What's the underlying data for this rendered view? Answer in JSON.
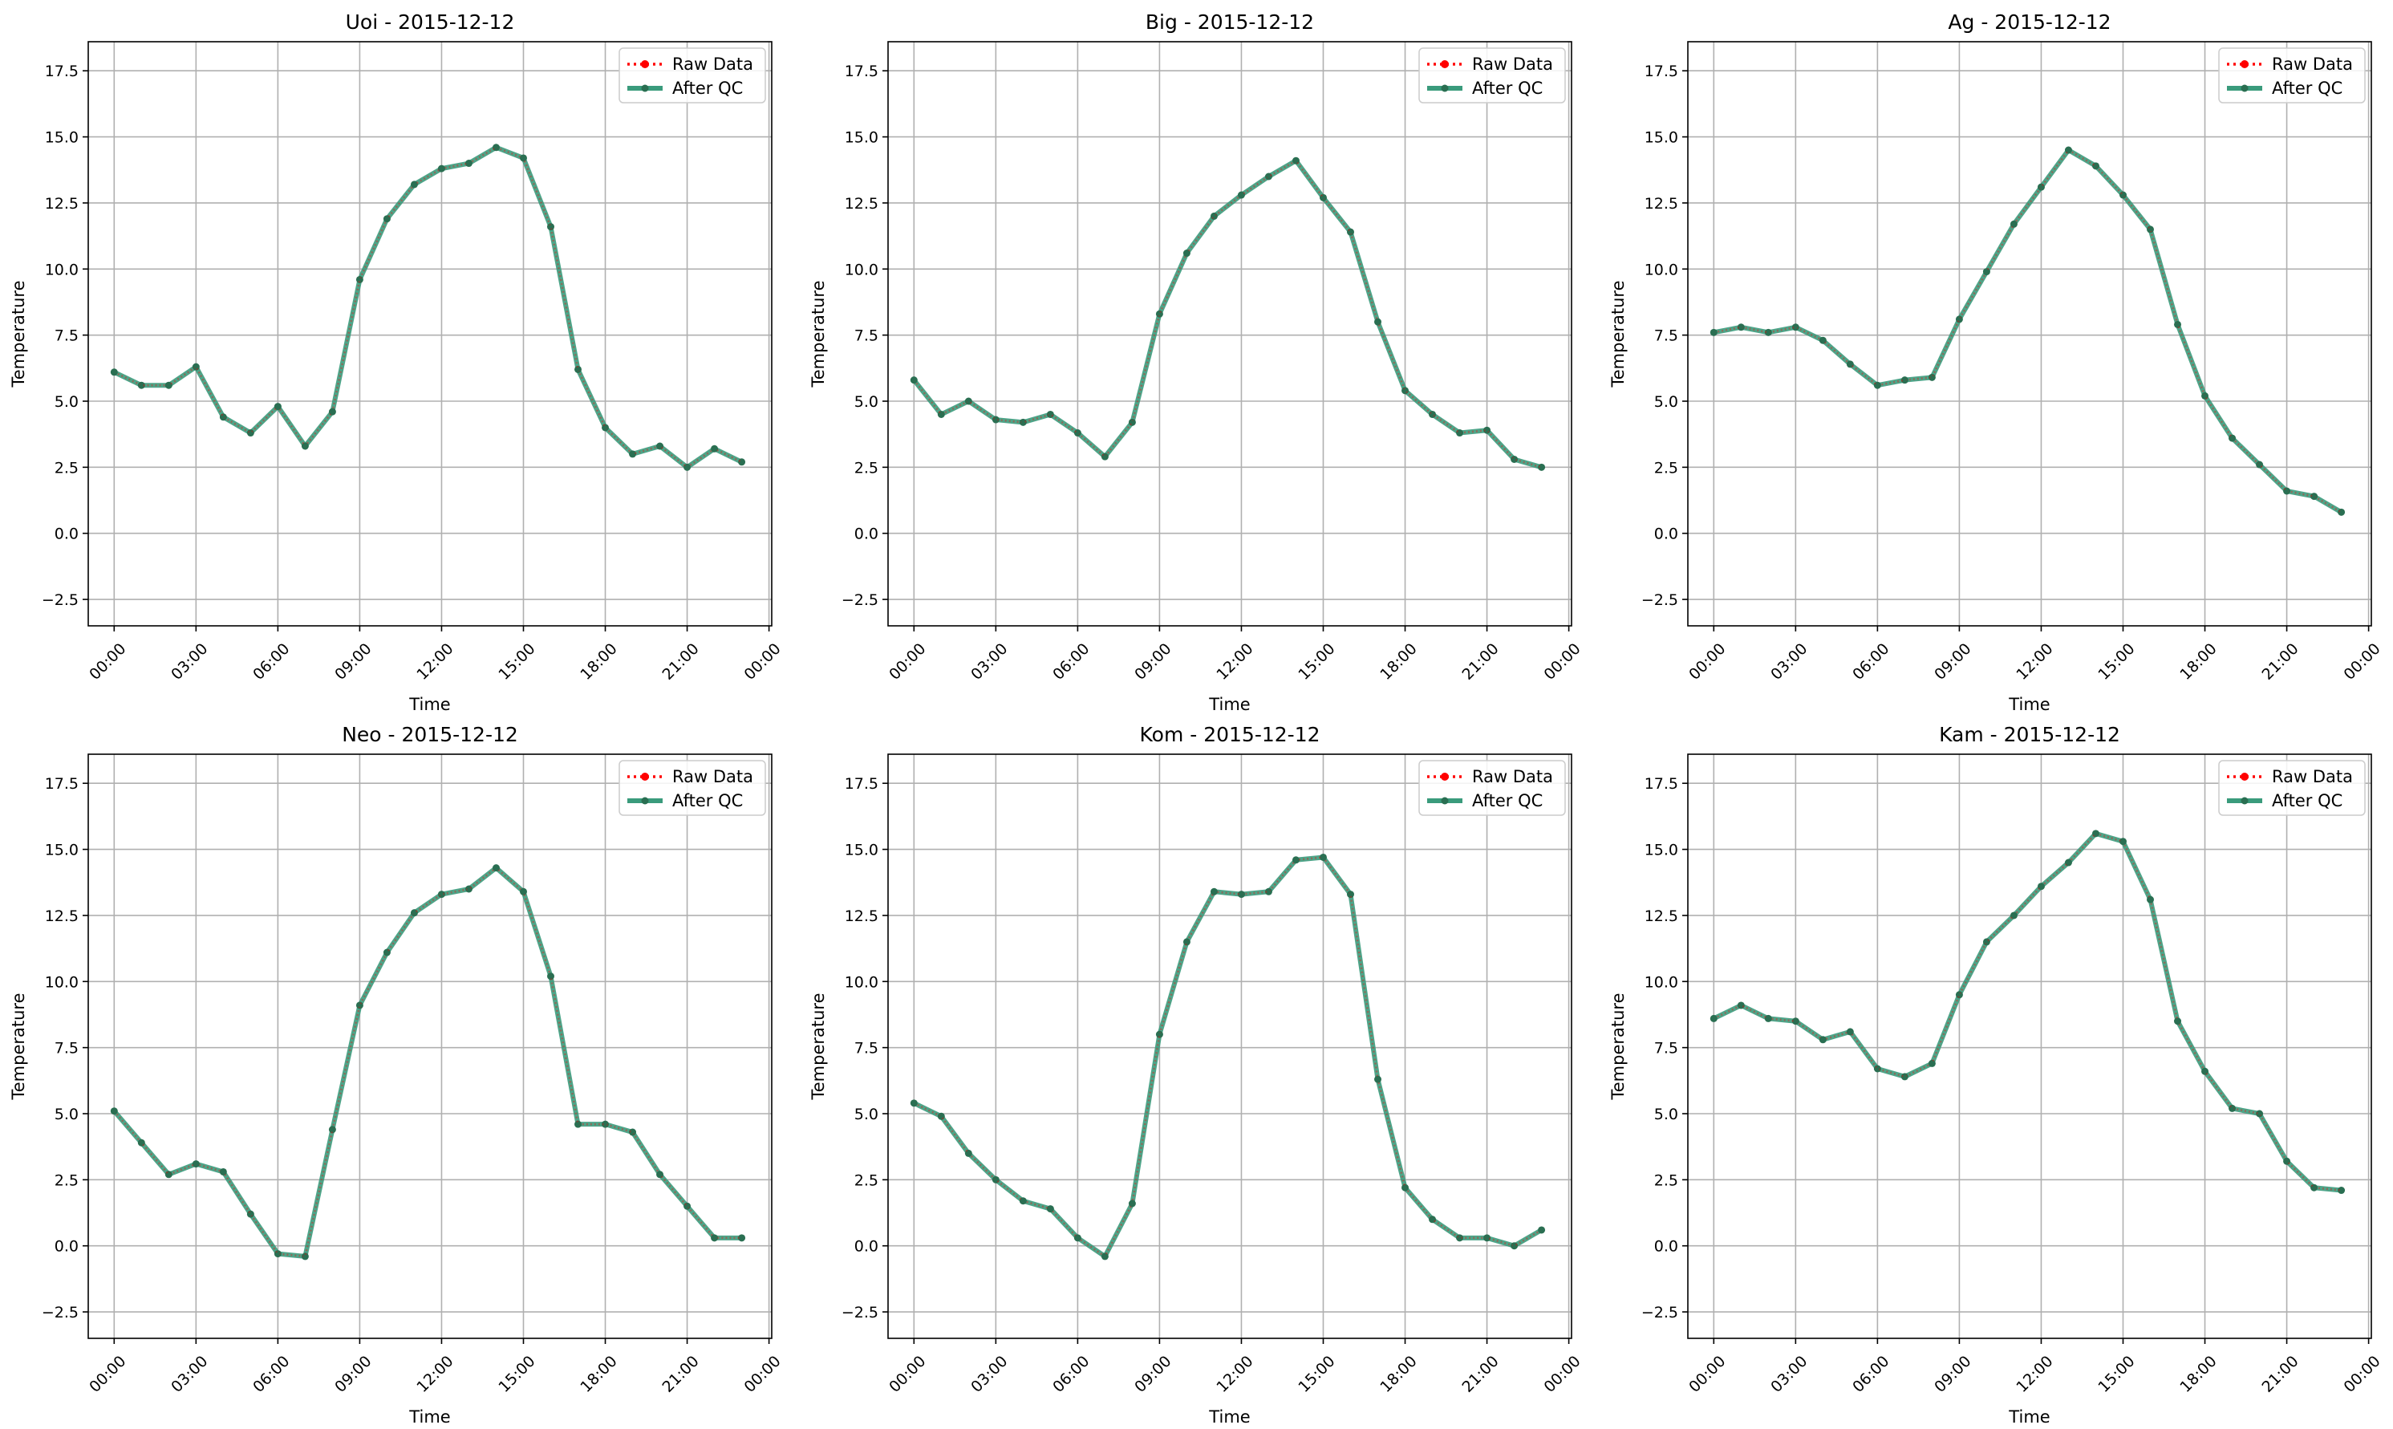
{
  "colors": {
    "raw": "#ff0000",
    "qc": "#2e8b6e",
    "qc_line": "#3a9b7c",
    "marker": "#2a6f52",
    "grid": "#b0b0b0",
    "axis": "#000000"
  },
  "chart_data": [
    {
      "type": "line",
      "title": "Uoi - 2015-12-12",
      "xlabel": "Time",
      "ylabel": "Temperature",
      "ylim": [
        -3.5,
        18.6
      ],
      "yticks": [
        -2.5,
        0.0,
        2.5,
        5.0,
        7.5,
        10.0,
        12.5,
        15.0,
        17.5
      ],
      "ytick_labels": [
        "−2.5",
        "0.0",
        "2.5",
        "5.0",
        "7.5",
        "10.0",
        "12.5",
        "15.0",
        "17.5"
      ],
      "xlim": [
        -0.95,
        24.1
      ],
      "xticks": [
        0,
        3,
        6,
        9,
        12,
        15,
        18,
        21,
        24
      ],
      "xtick_labels": [
        "00:00",
        "03:00",
        "06:00",
        "09:00",
        "12:00",
        "15:00",
        "18:00",
        "21:00",
        "00:00"
      ],
      "grid": true,
      "legend": "upper right",
      "x": [
        0,
        1,
        2,
        3,
        4,
        5,
        6,
        7,
        8,
        9,
        10,
        11,
        12,
        13,
        14,
        15,
        16,
        17,
        18,
        19,
        20,
        21,
        22,
        23
      ],
      "series": [
        {
          "name": "Raw Data",
          "style": "dotted",
          "values": [
            6.1,
            5.6,
            5.6,
            6.3,
            4.4,
            3.8,
            4.8,
            3.3,
            4.6,
            9.6,
            11.9,
            13.2,
            13.8,
            14.0,
            14.6,
            14.2,
            11.6,
            6.2,
            4.0,
            3.0,
            3.3,
            2.5,
            3.2,
            2.7
          ]
        },
        {
          "name": "After QC",
          "style": "solid",
          "values": [
            6.1,
            5.6,
            5.6,
            6.3,
            4.4,
            3.8,
            4.8,
            3.3,
            4.6,
            9.6,
            11.9,
            13.2,
            13.8,
            14.0,
            14.6,
            14.2,
            11.6,
            6.2,
            4.0,
            3.0,
            3.3,
            2.5,
            3.2,
            2.7
          ]
        }
      ]
    },
    {
      "type": "line",
      "title": "Big - 2015-12-12",
      "xlabel": "Time",
      "ylabel": "Temperature",
      "ylim": [
        -3.5,
        18.6
      ],
      "yticks": [
        -2.5,
        0.0,
        2.5,
        5.0,
        7.5,
        10.0,
        12.5,
        15.0,
        17.5
      ],
      "ytick_labels": [
        "−2.5",
        "0.0",
        "2.5",
        "5.0",
        "7.5",
        "10.0",
        "12.5",
        "15.0",
        "17.5"
      ],
      "xlim": [
        -0.95,
        24.1
      ],
      "xticks": [
        0,
        3,
        6,
        9,
        12,
        15,
        18,
        21,
        24
      ],
      "xtick_labels": [
        "00:00",
        "03:00",
        "06:00",
        "09:00",
        "12:00",
        "15:00",
        "18:00",
        "21:00",
        "00:00"
      ],
      "grid": true,
      "legend": "upper right",
      "x": [
        0,
        1,
        2,
        3,
        4,
        5,
        6,
        7,
        8,
        9,
        10,
        11,
        12,
        13,
        14,
        15,
        16,
        17,
        18,
        19,
        20,
        21,
        22,
        23
      ],
      "series": [
        {
          "name": "Raw Data",
          "style": "dotted",
          "values": [
            5.8,
            4.5,
            5.0,
            4.3,
            4.2,
            4.5,
            3.8,
            2.9,
            4.2,
            8.3,
            10.6,
            12.0,
            12.8,
            13.5,
            14.1,
            12.7,
            11.4,
            8.0,
            5.4,
            4.5,
            3.8,
            3.9,
            2.8,
            2.5
          ]
        },
        {
          "name": "After QC",
          "style": "solid",
          "values": [
            5.8,
            4.5,
            5.0,
            4.3,
            4.2,
            4.5,
            3.8,
            2.9,
            4.2,
            8.3,
            10.6,
            12.0,
            12.8,
            13.5,
            14.1,
            12.7,
            11.4,
            8.0,
            5.4,
            4.5,
            3.8,
            3.9,
            2.8,
            2.5
          ]
        }
      ]
    },
    {
      "type": "line",
      "title": "Ag - 2015-12-12",
      "xlabel": "Time",
      "ylabel": "Temperature",
      "ylim": [
        -3.5,
        18.6
      ],
      "yticks": [
        -2.5,
        0.0,
        2.5,
        5.0,
        7.5,
        10.0,
        12.5,
        15.0,
        17.5
      ],
      "ytick_labels": [
        "−2.5",
        "0.0",
        "2.5",
        "5.0",
        "7.5",
        "10.0",
        "12.5",
        "15.0",
        "17.5"
      ],
      "xlim": [
        -0.95,
        24.1
      ],
      "xticks": [
        0,
        3,
        6,
        9,
        12,
        15,
        18,
        21,
        24
      ],
      "xtick_labels": [
        "00:00",
        "03:00",
        "06:00",
        "09:00",
        "12:00",
        "15:00",
        "18:00",
        "21:00",
        "00:00"
      ],
      "grid": true,
      "legend": "upper right",
      "x": [
        0,
        1,
        2,
        3,
        4,
        5,
        6,
        7,
        8,
        9,
        10,
        11,
        12,
        13,
        14,
        15,
        16,
        17,
        18,
        19,
        20,
        21,
        22,
        23
      ],
      "series": [
        {
          "name": "Raw Data",
          "style": "dotted",
          "values": [
            7.6,
            7.8,
            7.6,
            7.8,
            7.3,
            6.4,
            5.6,
            5.8,
            5.9,
            8.1,
            9.9,
            11.7,
            13.1,
            14.5,
            13.9,
            12.8,
            11.5,
            7.9,
            5.2,
            3.6,
            2.6,
            1.6,
            1.4,
            0.8
          ]
        },
        {
          "name": "After QC",
          "style": "solid",
          "values": [
            7.6,
            7.8,
            7.6,
            7.8,
            7.3,
            6.4,
            5.6,
            5.8,
            5.9,
            8.1,
            9.9,
            11.7,
            13.1,
            14.5,
            13.9,
            12.8,
            11.5,
            7.9,
            5.2,
            3.6,
            2.6,
            1.6,
            1.4,
            0.8
          ]
        }
      ]
    },
    {
      "type": "line",
      "title": "Neo - 2015-12-12",
      "xlabel": "Time",
      "ylabel": "Temperature",
      "ylim": [
        -3.5,
        18.6
      ],
      "yticks": [
        -2.5,
        0.0,
        2.5,
        5.0,
        7.5,
        10.0,
        12.5,
        15.0,
        17.5
      ],
      "ytick_labels": [
        "−2.5",
        "0.0",
        "2.5",
        "5.0",
        "7.5",
        "10.0",
        "12.5",
        "15.0",
        "17.5"
      ],
      "xlim": [
        -0.95,
        24.1
      ],
      "xticks": [
        0,
        3,
        6,
        9,
        12,
        15,
        18,
        21,
        24
      ],
      "xtick_labels": [
        "00:00",
        "03:00",
        "06:00",
        "09:00",
        "12:00",
        "15:00",
        "18:00",
        "21:00",
        "00:00"
      ],
      "grid": true,
      "legend": "upper right",
      "x": [
        0,
        1,
        2,
        3,
        4,
        5,
        6,
        7,
        8,
        9,
        10,
        11,
        12,
        13,
        14,
        15,
        16,
        17,
        18,
        19,
        20,
        21,
        22,
        23
      ],
      "series": [
        {
          "name": "Raw Data",
          "style": "dotted",
          "values": [
            5.1,
            3.9,
            2.7,
            3.1,
            2.8,
            1.2,
            -0.3,
            -0.4,
            4.4,
            9.1,
            11.1,
            12.6,
            13.3,
            13.5,
            14.3,
            13.4,
            10.2,
            4.6,
            4.6,
            4.3,
            2.7,
            1.5,
            0.3,
            0.3
          ]
        },
        {
          "name": "After QC",
          "style": "solid",
          "values": [
            5.1,
            3.9,
            2.7,
            3.1,
            2.8,
            1.2,
            -0.3,
            -0.4,
            4.4,
            9.1,
            11.1,
            12.6,
            13.3,
            13.5,
            14.3,
            13.4,
            10.2,
            4.6,
            4.6,
            4.3,
            2.7,
            1.5,
            0.3,
            0.3
          ]
        }
      ]
    },
    {
      "type": "line",
      "title": "Kom - 2015-12-12",
      "xlabel": "Time",
      "ylabel": "Temperature",
      "ylim": [
        -3.5,
        18.6
      ],
      "yticks": [
        -2.5,
        0.0,
        2.5,
        5.0,
        7.5,
        10.0,
        12.5,
        15.0,
        17.5
      ],
      "ytick_labels": [
        "−2.5",
        "0.0",
        "2.5",
        "5.0",
        "7.5",
        "10.0",
        "12.5",
        "15.0",
        "17.5"
      ],
      "xlim": [
        -0.95,
        24.1
      ],
      "xticks": [
        0,
        3,
        6,
        9,
        12,
        15,
        18,
        21,
        24
      ],
      "xtick_labels": [
        "00:00",
        "03:00",
        "06:00",
        "09:00",
        "12:00",
        "15:00",
        "18:00",
        "21:00",
        "00:00"
      ],
      "grid": true,
      "legend": "upper right",
      "x": [
        0,
        1,
        2,
        3,
        4,
        5,
        6,
        7,
        8,
        9,
        10,
        11,
        12,
        13,
        14,
        15,
        16,
        17,
        18,
        19,
        20,
        21,
        22,
        23
      ],
      "series": [
        {
          "name": "Raw Data",
          "style": "dotted",
          "values": [
            5.4,
            4.9,
            3.5,
            2.5,
            1.7,
            1.4,
            0.3,
            -0.4,
            1.6,
            8.0,
            11.5,
            13.4,
            13.3,
            13.4,
            14.6,
            14.7,
            13.3,
            6.3,
            2.2,
            1.0,
            0.3,
            0.3,
            0.0,
            0.6
          ]
        },
        {
          "name": "After QC",
          "style": "solid",
          "values": [
            5.4,
            4.9,
            3.5,
            2.5,
            1.7,
            1.4,
            0.3,
            -0.4,
            1.6,
            8.0,
            11.5,
            13.4,
            13.3,
            13.4,
            14.6,
            14.7,
            13.3,
            6.3,
            2.2,
            1.0,
            0.3,
            0.3,
            0.0,
            0.6
          ]
        }
      ]
    },
    {
      "type": "line",
      "title": "Kam - 2015-12-12",
      "xlabel": "Time",
      "ylabel": "Temperature",
      "ylim": [
        -3.5,
        18.6
      ],
      "yticks": [
        -2.5,
        0.0,
        2.5,
        5.0,
        7.5,
        10.0,
        12.5,
        15.0,
        17.5
      ],
      "ytick_labels": [
        "−2.5",
        "0.0",
        "2.5",
        "5.0",
        "7.5",
        "10.0",
        "12.5",
        "15.0",
        "17.5"
      ],
      "xlim": [
        -0.95,
        24.1
      ],
      "xticks": [
        0,
        3,
        6,
        9,
        12,
        15,
        18,
        21,
        24
      ],
      "xtick_labels": [
        "00:00",
        "03:00",
        "06:00",
        "09:00",
        "12:00",
        "15:00",
        "18:00",
        "21:00",
        "00:00"
      ],
      "grid": true,
      "legend": "upper right",
      "x": [
        0,
        1,
        2,
        3,
        4,
        5,
        6,
        7,
        8,
        9,
        10,
        11,
        12,
        13,
        14,
        15,
        16,
        17,
        18,
        19,
        20,
        21,
        22,
        23
      ],
      "series": [
        {
          "name": "Raw Data",
          "style": "dotted",
          "values": [
            8.6,
            9.1,
            8.6,
            8.5,
            7.8,
            8.1,
            6.7,
            6.4,
            6.9,
            9.5,
            11.5,
            12.5,
            13.6,
            14.5,
            15.6,
            15.3,
            13.1,
            8.5,
            6.6,
            5.2,
            5.0,
            3.2,
            2.2,
            2.1
          ]
        },
        {
          "name": "After QC",
          "style": "solid",
          "values": [
            8.6,
            9.1,
            8.6,
            8.5,
            7.8,
            8.1,
            6.7,
            6.4,
            6.9,
            9.5,
            11.5,
            12.5,
            13.6,
            14.5,
            15.6,
            15.3,
            13.1,
            8.5,
            6.6,
            5.2,
            5.0,
            3.2,
            2.2,
            2.1
          ]
        }
      ]
    }
  ]
}
